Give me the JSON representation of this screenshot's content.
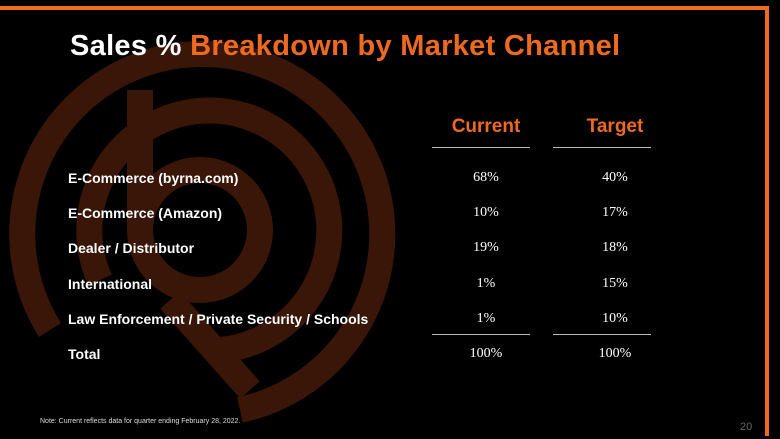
{
  "title": {
    "white": "Sales %",
    "accent": "Breakdown by Market Channel"
  },
  "columns": {
    "current": "Current",
    "target": "Target"
  },
  "rows": [
    {
      "label": "E-Commerce (byrna.com)",
      "current": "68%",
      "target": "40%"
    },
    {
      "label": "E-Commerce (Amazon)",
      "current": "10%",
      "target": "17%"
    },
    {
      "label": "Dealer / Distributor",
      "current": "19%",
      "target": "18%"
    },
    {
      "label": "International",
      "current": "1%",
      "target": "15%"
    },
    {
      "label": "Law Enforcement / Private Security / Schools",
      "current": "1%",
      "target": "10%"
    },
    {
      "label": "Total",
      "current": "100%",
      "target": "100%"
    }
  ],
  "note": "Note: Current reflects data for quarter ending February 28, 2022.",
  "page_number": "20",
  "colors": {
    "accent": "#ee6a21",
    "background": "#000000",
    "logo": "#3a1608"
  },
  "logo": "byrna-logo-watermark"
}
